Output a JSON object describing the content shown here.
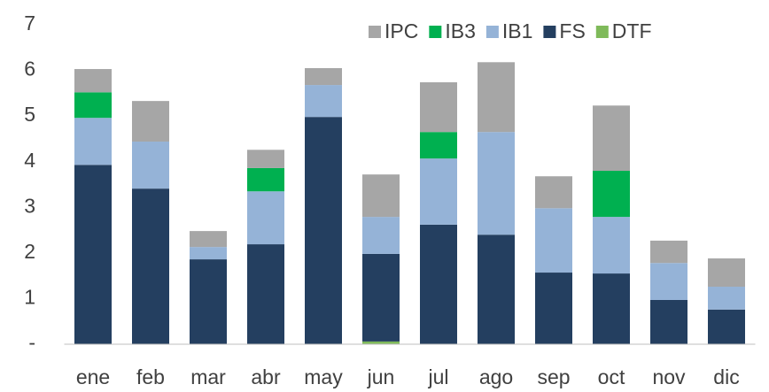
{
  "chart_data": {
    "type": "stacked_bar",
    "categories": [
      "ene",
      "feb",
      "mar",
      "abr",
      "may",
      "jun",
      "jul",
      "ago",
      "sep",
      "oct",
      "nov",
      "dic"
    ],
    "series": [
      {
        "name": "DTF",
        "color": "#7fba5a",
        "values": [
          0,
          0,
          0,
          0,
          0,
          0.06,
          0,
          0,
          0,
          0,
          0,
          0
        ]
      },
      {
        "name": "FS",
        "color": "#243f60",
        "values": [
          3.93,
          3.41,
          1.86,
          2.19,
          4.98,
          1.92,
          2.62,
          2.4,
          1.57,
          1.55,
          0.97,
          0.76
        ]
      },
      {
        "name": "IB1",
        "color": "#95b3d7",
        "values": [
          1.03,
          1.03,
          0.27,
          1.16,
          0.7,
          0.81,
          1.45,
          2.25,
          1.41,
          1.24,
          0.81,
          0.5
        ]
      },
      {
        "name": "IB3",
        "color": "#00b050",
        "values": [
          0.56,
          0,
          0,
          0.51,
          0,
          0,
          0.58,
          0,
          0,
          1.01,
          0,
          0
        ]
      },
      {
        "name": "IPC",
        "color": "#a6a6a6",
        "values": [
          0.51,
          0.89,
          0.35,
          0.4,
          0.37,
          0.93,
          1.09,
          1.53,
          0.7,
          1.43,
          0.49,
          0.62
        ]
      }
    ],
    "ylim": [
      0,
      7
    ],
    "yticks": [
      {
        "value": 0,
        "label": "-"
      },
      1,
      2,
      3,
      4,
      5,
      6,
      7
    ],
    "grid": false
  }
}
